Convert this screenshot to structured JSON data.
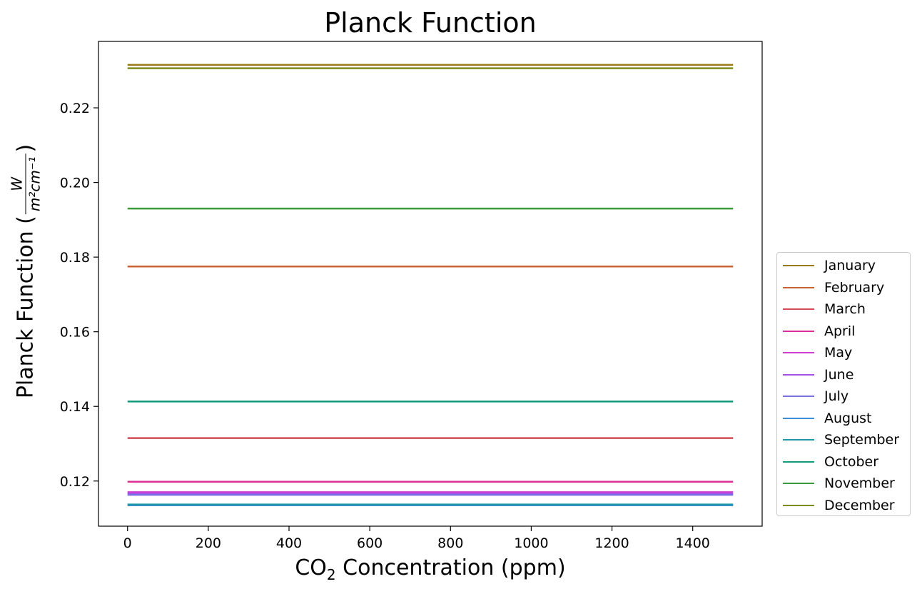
{
  "chart_data": {
    "type": "line",
    "title": "Planck Function",
    "xlabel_main": "CO",
    "xlabel_sub": "2",
    "xlabel_rest": " Concentration (ppm)",
    "ylabel_text": "Planck Function (",
    "ylabel_frac_num": "W",
    "ylabel_frac_den": "m²cm⁻¹",
    "ylabel_close": ")",
    "xlim": [
      -72,
      1572
    ],
    "ylim": [
      0.1079,
      0.2378
    ],
    "xticks": [
      0,
      200,
      400,
      600,
      800,
      1000,
      1200,
      1400
    ],
    "yticks": [
      0.12,
      0.14,
      0.16,
      0.18,
      0.2,
      0.22
    ],
    "ytick_labels": [
      "0.12",
      "0.14",
      "0.16",
      "0.18",
      "0.20",
      "0.22"
    ],
    "x": [
      0,
      1500
    ],
    "grid": false,
    "legend_position": "lower right outside",
    "series": [
      {
        "name": "January",
        "color": "#9a7a14",
        "value": 0.2315
      },
      {
        "name": "February",
        "color": "#c96234",
        "value": 0.1775
      },
      {
        "name": "March",
        "color": "#d34a55",
        "value": 0.1315
      },
      {
        "name": "April",
        "color": "#dc2f98",
        "value": 0.1198
      },
      {
        "name": "May",
        "color": "#cf3fd3",
        "value": 0.117
      },
      {
        "name": "June",
        "color": "#a54fe6",
        "value": 0.1166
      },
      {
        "name": "July",
        "color": "#7a70e2",
        "value": 0.1163
      },
      {
        "name": "August",
        "color": "#3d8ed9",
        "value": 0.1135
      },
      {
        "name": "September",
        "color": "#2196a6",
        "value": 0.1137
      },
      {
        "name": "October",
        "color": "#139a7a",
        "value": 0.1413
      },
      {
        "name": "November",
        "color": "#3c9a3c",
        "value": 0.193
      },
      {
        "name": "December",
        "color": "#7e8c1c",
        "value": 0.2306
      }
    ]
  }
}
